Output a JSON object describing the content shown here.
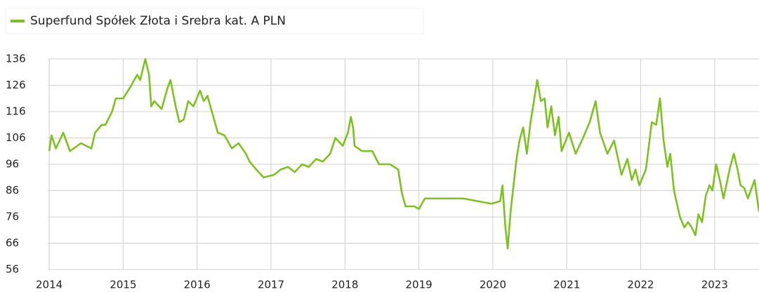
{
  "chart_data": {
    "type": "line",
    "x": [
      2014.0,
      2014.03,
      2014.09,
      2014.19,
      2014.28,
      2014.38,
      2014.43,
      2014.57,
      2014.62,
      2014.71,
      2014.76,
      2014.85,
      2014.9,
      2015.0,
      2015.09,
      2015.19,
      2015.23,
      2015.3,
      2015.35,
      2015.38,
      2015.42,
      2015.52,
      2015.6,
      2015.64,
      2015.71,
      2015.76,
      2015.82,
      2015.88,
      2015.95,
      2016.04,
      2016.09,
      2016.14,
      2016.21,
      2016.28,
      2016.37,
      2016.47,
      2016.56,
      2016.66,
      2016.71,
      2016.8,
      2016.9,
      2017.04,
      2017.13,
      2017.23,
      2017.32,
      2017.42,
      2017.51,
      2017.61,
      2017.7,
      2017.8,
      2017.87,
      2017.97,
      2018.04,
      2018.08,
      2018.11,
      2018.13,
      2018.23,
      2018.37,
      2018.46,
      2018.61,
      2018.72,
      2018.77,
      2018.82,
      2018.94,
      2019.0,
      2019.08,
      2019.32,
      2019.6,
      2019.79,
      2019.98,
      2020.1,
      2020.13,
      2020.17,
      2020.2,
      2020.24,
      2020.32,
      2020.36,
      2020.41,
      2020.46,
      2020.51,
      2020.55,
      2020.6,
      2020.65,
      2020.7,
      2020.74,
      2020.79,
      2020.84,
      2020.89,
      2020.93,
      2021.03,
      2021.12,
      2021.22,
      2021.31,
      2021.39,
      2021.45,
      2021.55,
      2021.64,
      2021.74,
      2021.82,
      2021.88,
      2021.93,
      2021.98,
      2022.07,
      2022.15,
      2022.21,
      2022.26,
      2022.31,
      2022.36,
      2022.4,
      2022.45,
      2022.53,
      2022.59,
      2022.64,
      2022.69,
      2022.74,
      2022.78,
      2022.83,
      2022.88,
      2022.93,
      2022.97,
      2023.02,
      2023.07,
      2023.12,
      2023.21,
      2023.26,
      2023.31,
      2023.35,
      2023.4,
      2023.45,
      2023.54,
      2023.6
    ],
    "series": [
      {
        "name": "Superfund Spółek Złota i Srebra kat. A PLN",
        "color": "#7dc11f",
        "values": [
          101,
          107,
          102,
          108,
          101,
          103,
          104,
          102,
          108,
          111,
          111,
          116,
          121,
          121,
          125,
          130,
          128,
          136,
          130,
          118,
          120,
          117,
          125,
          128,
          118,
          112,
          113,
          120,
          118,
          124,
          120,
          122,
          115,
          108,
          107,
          102,
          104,
          100,
          97,
          94,
          91,
          92,
          94,
          95,
          93,
          96,
          95,
          98,
          97,
          100,
          106,
          103,
          108,
          114,
          110,
          103,
          101,
          101,
          96,
          96,
          94,
          85,
          80,
          80,
          79,
          83,
          83,
          83,
          82,
          81,
          82,
          88,
          72,
          64,
          78,
          98,
          105,
          110,
          100,
          112,
          119,
          128,
          120,
          121,
          110,
          118,
          107,
          114,
          101,
          108,
          100,
          106,
          112,
          120,
          108,
          100,
          105,
          92,
          98,
          90,
          94,
          88,
          94,
          112,
          111,
          121,
          105,
          95,
          100,
          86,
          76,
          72,
          74,
          72,
          69,
          77,
          74,
          84,
          88,
          86,
          96,
          90,
          83,
          95,
          100,
          94,
          88,
          87,
          83,
          90,
          78
        ]
      }
    ],
    "xlim": [
      2013.98,
      2023.6
    ],
    "xticks": [
      2014,
      2015,
      2016,
      2017,
      2018,
      2019,
      2020,
      2021,
      2022,
      2023
    ],
    "ylim": [
      56,
      136
    ],
    "yticks": [
      56,
      66,
      76,
      86,
      96,
      106,
      116,
      126,
      136
    ],
    "grid": true
  }
}
